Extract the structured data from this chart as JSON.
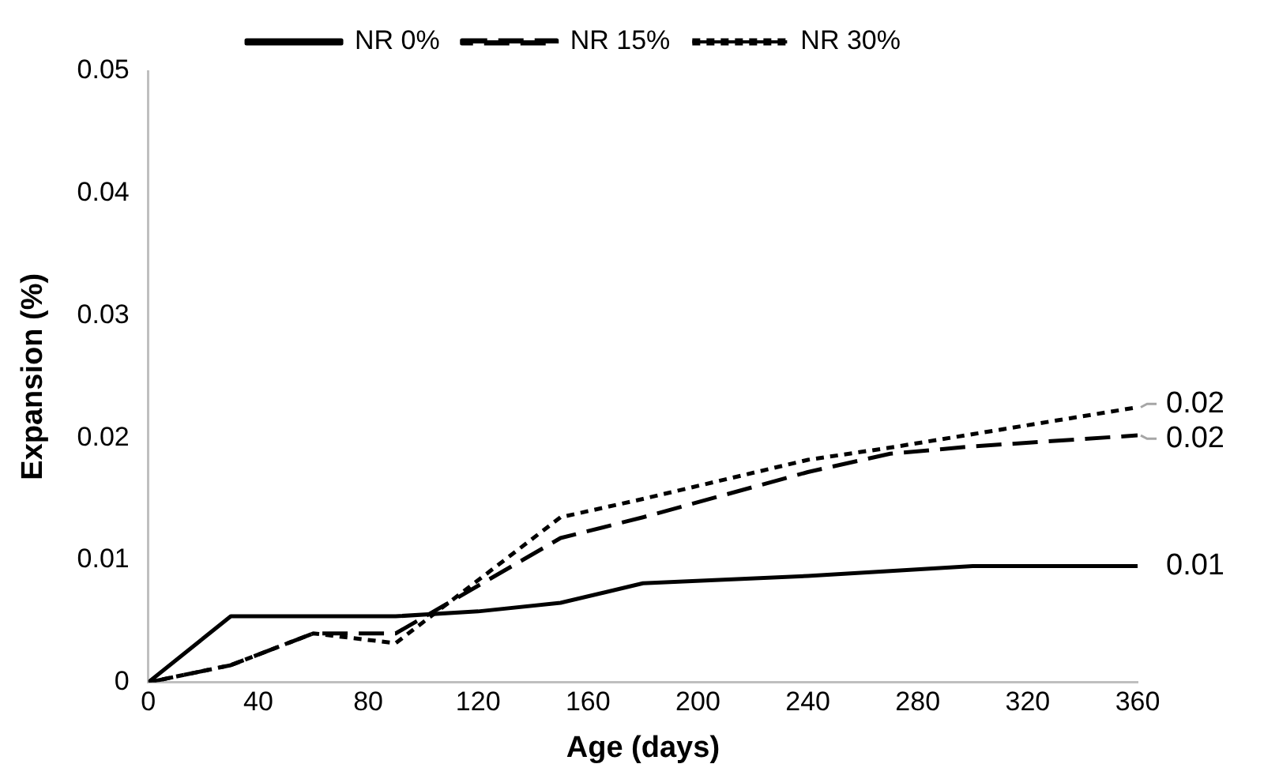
{
  "chart_data": {
    "type": "line",
    "xlabel": "Age (days)",
    "ylabel": "Expansion (%)",
    "x": [
      0,
      30,
      60,
      90,
      120,
      150,
      180,
      240,
      270,
      300,
      360
    ],
    "series": [
      {
        "name": "NR 0%",
        "color": "#000000",
        "line_style": "solid",
        "values": [
          0,
          0.0054,
          0.0054,
          0.0054,
          0.0058,
          0.0065,
          0.0081,
          0.0087,
          0.0091,
          0.0095,
          0.0095
        ],
        "value_labels": [
          null,
          null,
          null,
          null,
          null,
          null,
          null,
          null,
          null,
          null,
          "0.01"
        ]
      },
      {
        "name": "NR 15%",
        "color": "#000000",
        "line_style": "dashed",
        "values": [
          0,
          0.0014,
          0.004,
          0.004,
          null,
          0.0118,
          0.0135,
          0.0172,
          0.0187,
          0.0193,
          0.0202
        ],
        "value_labels": [
          null,
          null,
          null,
          null,
          null,
          null,
          null,
          null,
          null,
          null,
          "0.02"
        ]
      },
      {
        "name": "NR 30%",
        "color": "#000000",
        "line_style": "dotted",
        "values": [
          0,
          0.0014,
          0.004,
          0.0032,
          null,
          0.0135,
          0.015,
          0.0182,
          0.0192,
          0.0203,
          0.0225
        ],
        "value_labels": [
          null,
          null,
          null,
          null,
          null,
          null,
          null,
          null,
          null,
          null,
          "0.02"
        ]
      }
    ],
    "xlim": [
      0,
      360
    ],
    "xticks": [
      0,
      40,
      80,
      120,
      160,
      200,
      240,
      280,
      320,
      360
    ],
    "ylim": [
      0,
      0.05
    ],
    "yticks": [
      0,
      0.01,
      0.02,
      0.03,
      0.04,
      0.05
    ],
    "grid": false,
    "legend": "top",
    "marker": "none"
  }
}
